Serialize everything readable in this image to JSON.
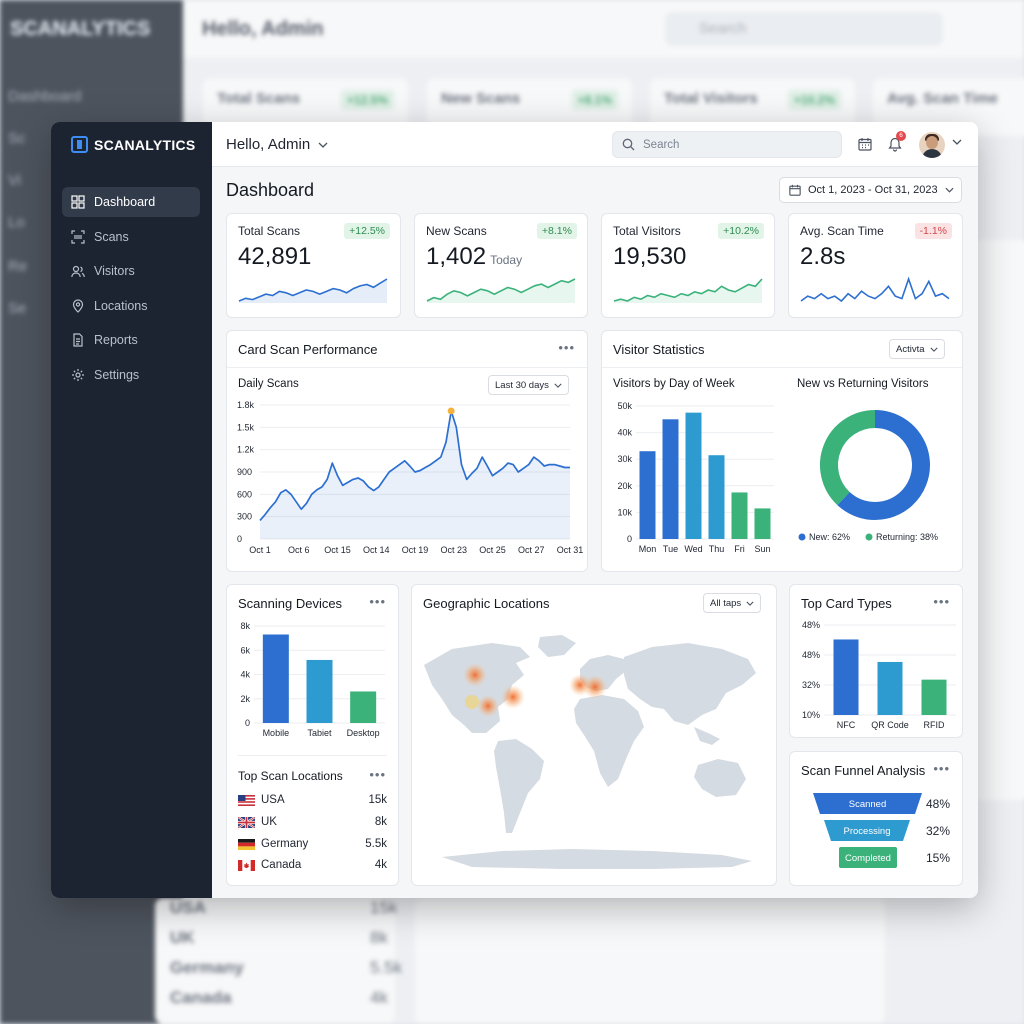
{
  "background": {
    "logo": "SCANALYTICS",
    "nav": [
      "Dashboard",
      "Sc",
      "Vi",
      "Lo",
      "Re",
      "Se"
    ],
    "hello": "Hello, Admin",
    "search": "Search",
    "cards": [
      {
        "label": "Total Scans",
        "change": "+12.5%"
      },
      {
        "label": "New Scans",
        "change": "+8.1%"
      },
      {
        "label": "Total Visitors",
        "change": "+10.2%"
      },
      {
        "label": "Avg. Scan Time",
        "change": ""
      }
    ],
    "locations": [
      {
        "name": "USA",
        "value": "15k"
      },
      {
        "name": "UK",
        "value": "8k"
      },
      {
        "name": "Germany",
        "value": "5.5k"
      },
      {
        "name": "Canada",
        "value": "4k"
      }
    ]
  },
  "app": {
    "logo": "SCANALYTICS"
  },
  "sidebar": {
    "items": [
      {
        "label": "Dashboard",
        "icon": "grid-icon"
      },
      {
        "label": "Scans",
        "icon": "scan-icon"
      },
      {
        "label": "Visitors",
        "icon": "users-icon"
      },
      {
        "label": "Locations",
        "icon": "pin-icon"
      },
      {
        "label": "Reports",
        "icon": "document-icon"
      },
      {
        "label": "Settings",
        "icon": "gear-icon"
      }
    ]
  },
  "header": {
    "greeting": "Hello, Admin",
    "search_placeholder": "Search",
    "notification_count": "6"
  },
  "main": {
    "title": "Dashboard",
    "date_range": "Oct 1, 2023 - Oct 31, 2023",
    "kpis": [
      {
        "label": "Total Scans",
        "value": "42,891",
        "sub": "",
        "change": "+12.5%",
        "trend": "positive",
        "color": "#2c6fd1"
      },
      {
        "label": "New Scans",
        "value": "1,402",
        "sub": "Today",
        "change": "+8.1%",
        "trend": "positive",
        "color": "#3ab27a"
      },
      {
        "label": "Total Visitors",
        "value": "19,530",
        "sub": "",
        "change": "+10.2%",
        "trend": "positive",
        "color": "#3ab27a"
      },
      {
        "label": "Avg. Scan Time",
        "value": "2.8s",
        "sub": "",
        "change": "-1.1%",
        "trend": "negative",
        "color": "#2c6fd1"
      }
    ],
    "performance": {
      "title": "Card Scan Performance",
      "subtitle": "Daily Scans",
      "range": "Last 30 days"
    },
    "visitors": {
      "title": "Visitor Statistics",
      "filter": "Activta",
      "by_day_title": "Visitors by Day of Week",
      "new_vs_title": "New vs Returning Visitors"
    },
    "devices": {
      "title": "Scanning Devices"
    },
    "top_locations": {
      "title": "Top Scan Locations",
      "rows": [
        {
          "name": "USA",
          "value": "15k"
        },
        {
          "name": "UK",
          "value": "8k"
        },
        {
          "name": "Germany",
          "value": "5.5k"
        },
        {
          "name": "Canada",
          "value": "4k"
        }
      ]
    },
    "geo": {
      "title": "Geographic Locations",
      "filter": "All taps"
    },
    "card_types": {
      "title": "Top Card Types"
    },
    "funnel": {
      "title": "Scan Funnel Analysis",
      "stages": [
        {
          "label": "Scanned",
          "value": "48%",
          "color": "#2c6fd1"
        },
        {
          "label": "Processing",
          "value": "32%",
          "color": "#2d9bd0"
        },
        {
          "label": "Completed",
          "value": "15%",
          "color": "#3ab27a"
        }
      ]
    }
  },
  "chart_data": [
    {
      "type": "line",
      "title": "Daily Scans",
      "x_ticks": [
        "Oct 1",
        "Oct 6",
        "Oct 15",
        "Oct 14",
        "Oct 19",
        "Oct 23",
        "Oct 25",
        "Oct 27",
        "Oct 31"
      ],
      "y_ticks": [
        "0",
        "300",
        "600",
        "900",
        "1.2k",
        "1.5k",
        "1.8k"
      ],
      "ylim": [
        0,
        1800
      ],
      "x_index": [
        0,
        0.5,
        1,
        1.5,
        2,
        2.5,
        3,
        3.5,
        4,
        4.5,
        5,
        5.5,
        6,
        6.5,
        7,
        7.5,
        8,
        8.5,
        9,
        9.5,
        10,
        10.5,
        11,
        11.5,
        12,
        12.5,
        13,
        13.5,
        14,
        14.5,
        15,
        15.5,
        16,
        16.5,
        17,
        17.5,
        18,
        18.5,
        19,
        19.5,
        20,
        20.5,
        21,
        21.5,
        22,
        22.5,
        23,
        23.5,
        24,
        24.5,
        25,
        25.5,
        26,
        26.5,
        27,
        27.5,
        28,
        28.5,
        29,
        29.5,
        30
      ],
      "values": [
        250,
        330,
        420,
        500,
        620,
        660,
        600,
        500,
        400,
        480,
        600,
        660,
        700,
        800,
        1020,
        850,
        720,
        760,
        800,
        820,
        780,
        700,
        650,
        700,
        800,
        900,
        950,
        1000,
        1050,
        980,
        900,
        920,
        960,
        1000,
        1050,
        1100,
        1300,
        1720,
        1500,
        1000,
        800,
        880,
        950,
        1100,
        980,
        850,
        900,
        950,
        1020,
        1000,
        900,
        950,
        1000,
        1100,
        1050,
        980,
        1000,
        1000,
        980,
        960,
        960
      ],
      "peak_index": 18,
      "grid": true,
      "color": "#2c6fd1"
    },
    {
      "type": "bar",
      "title": "Visitors by Day of Week",
      "categories": [
        "Mon",
        "Tue",
        "Wed",
        "Thu",
        "Fri",
        "Sun"
      ],
      "values": [
        33000,
        45000,
        47500,
        31500,
        17500,
        11500
      ],
      "colors": [
        "#2c6fd1",
        "#2c6fd1",
        "#2d9bd0",
        "#2d9bd0",
        "#3ab27a",
        "#3ab27a"
      ],
      "y_ticks": [
        "0",
        "10k",
        "20k",
        "30k",
        "40k",
        "50k"
      ],
      "ylim": [
        0,
        50000
      ],
      "grid": true
    },
    {
      "type": "pie",
      "title": "New vs Returning Visitors",
      "slices": [
        {
          "label": "New",
          "value": 62,
          "legend": "New: 62%",
          "color": "#2c6fd1"
        },
        {
          "label": "Returning",
          "value": 38,
          "legend": "Returning: 38%",
          "color": "#3ab27a"
        }
      ]
    },
    {
      "type": "bar",
      "title": "Scanning Devices",
      "categories": [
        "Mobile",
        "Tabiet",
        "Desktop"
      ],
      "values": [
        7300,
        5200,
        2600
      ],
      "colors": [
        "#2c6fd1",
        "#2d9bd0",
        "#3ab27a"
      ],
      "y_ticks": [
        "0",
        "2k",
        "4k",
        "6k",
        "8k"
      ],
      "ylim": [
        0,
        8000
      ],
      "grid": true
    },
    {
      "type": "bar",
      "title": "Top Card Types",
      "categories": [
        "NFC",
        "QR Code",
        "RFID"
      ],
      "values": [
        47,
        33,
        22
      ],
      "colors": [
        "#2c6fd1",
        "#2d9bd0",
        "#3ab27a"
      ],
      "y_ticks": [
        "10%",
        "32%",
        "48%",
        "48%"
      ],
      "ylim": [
        0,
        56
      ],
      "grid": true
    }
  ],
  "map": {
    "hotspots": [
      "us-west",
      "us-central",
      "us-east",
      "us-south",
      "uk",
      "germany"
    ],
    "hotspot_color": "#f07a3c"
  }
}
